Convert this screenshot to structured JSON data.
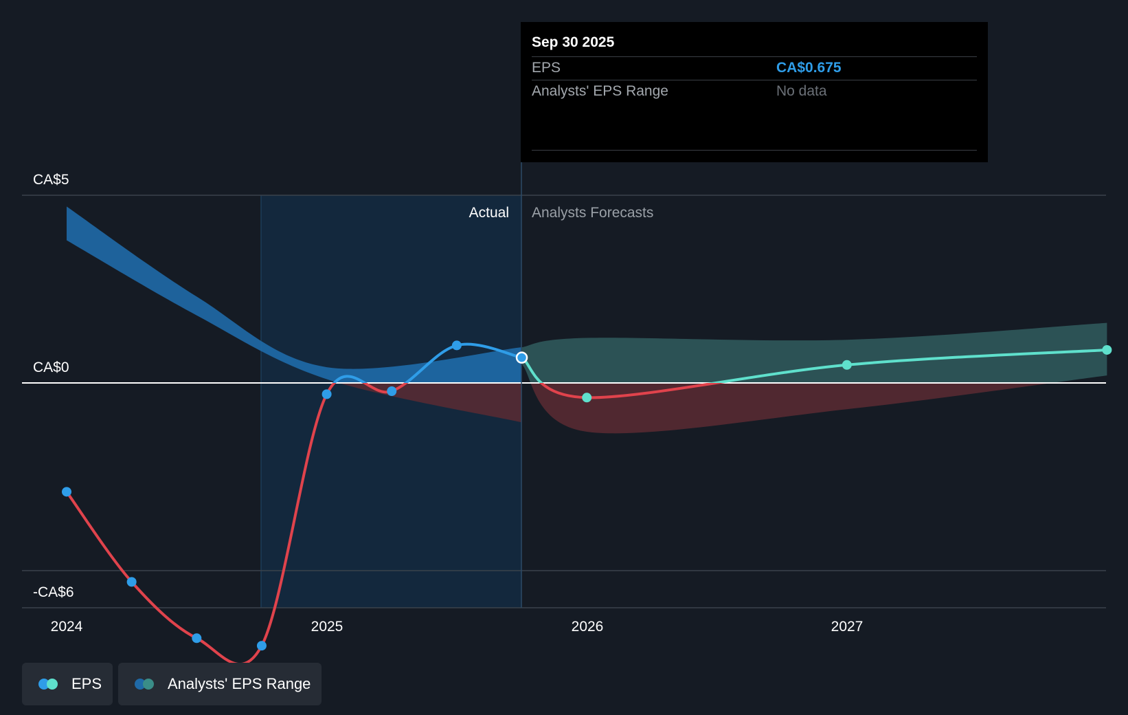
{
  "chart_data": {
    "type": "line",
    "y_tick_labels": [
      "CA$5",
      "CA$0",
      "-CA$6"
    ],
    "x_tick_labels": [
      "2024",
      "2025",
      "2026",
      "2027"
    ],
    "ylim": [
      -6,
      5
    ],
    "section_labels": {
      "actual": "Actual",
      "forecast": "Analysts Forecasts"
    },
    "series": [
      {
        "name": "EPS",
        "kind": "actual",
        "points": [
          {
            "x": 2024.0,
            "y": -2.9
          },
          {
            "x": 2024.25,
            "y": -5.3
          },
          {
            "x": 2024.5,
            "y": -6.8
          },
          {
            "x": 2024.75,
            "y": -7.0
          },
          {
            "x": 2025.0,
            "y": -0.3
          },
          {
            "x": 2025.25,
            "y": -0.22
          },
          {
            "x": 2025.5,
            "y": 1.0
          },
          {
            "x": 2025.75,
            "y": 0.675
          }
        ]
      },
      {
        "name": "EPS",
        "kind": "forecast",
        "points": [
          {
            "x": 2025.75,
            "y": 0.675
          },
          {
            "x": 2026.0,
            "y": -0.39
          },
          {
            "x": 2027.0,
            "y": 0.48
          },
          {
            "x": 2028.0,
            "y": 0.88
          }
        ]
      }
    ],
    "range_actual": {
      "upper": [
        [
          2024.0,
          4.7
        ],
        [
          2024.5,
          2.3
        ],
        [
          2025.0,
          0.42
        ],
        [
          2025.75,
          0.95
        ]
      ],
      "lower": [
        [
          2024.0,
          3.8
        ],
        [
          2024.5,
          1.8
        ],
        [
          2025.0,
          0.1
        ],
        [
          2025.75,
          -1.05
        ]
      ]
    },
    "range_forecast": {
      "upper": [
        [
          2025.75,
          0.95
        ],
        [
          2026.0,
          1.2
        ],
        [
          2027.0,
          1.15
        ],
        [
          2028.0,
          1.6
        ]
      ],
      "lower": [
        [
          2025.75,
          0.5
        ],
        [
          2026.0,
          -1.3
        ],
        [
          2027.0,
          -0.7
        ],
        [
          2028.0,
          0.2
        ]
      ]
    },
    "highlight_point": {
      "x": 2025.75,
      "y": 0.675
    },
    "colors": {
      "background": "#151b24",
      "actual_shade": "#13283d",
      "eps_positive_actual": "#2f9de8",
      "eps_negative": "#e0434c",
      "eps_forecast": "#5fe0cc",
      "range_past_upper": "#1f6aa8",
      "range_forecast_upper": "#2d5558",
      "range_negative": "#5a2a33"
    }
  },
  "tooltip": {
    "date": "Sep 30 2025",
    "eps_label": "EPS",
    "eps_value": "CA$0.675",
    "range_label": "Analysts' EPS Range",
    "range_value": "No data"
  },
  "legend": {
    "eps": {
      "label": "EPS",
      "colors": [
        "#2f9de8",
        "#5fe0cc"
      ]
    },
    "range": {
      "label": "Analysts' EPS Range",
      "colors": [
        "#1f6aa8",
        "#3a8d88"
      ]
    }
  }
}
